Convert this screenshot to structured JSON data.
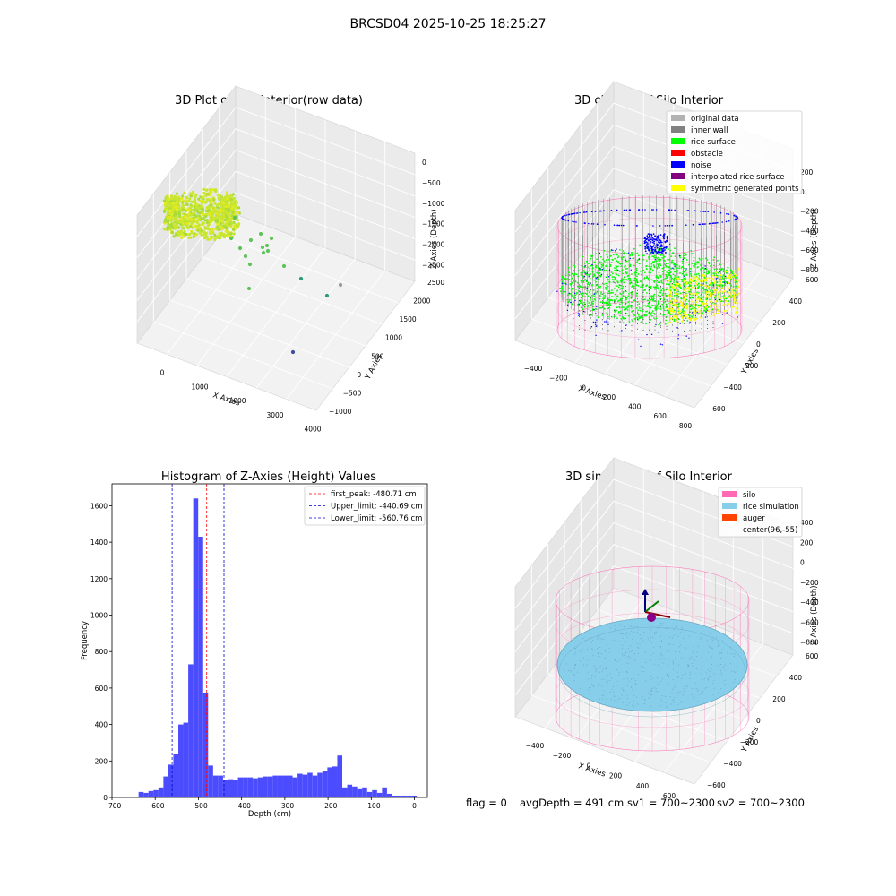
{
  "figure": {
    "suptitle": "BRCSD04 2025-10-25 18:25:27",
    "status_line": {
      "flag": "flag = 0",
      "avg_depth": "avgDepth = 491 cm",
      "sv1": "sv1 = 700~2300",
      "sv2": "sv2 = 700~2300"
    }
  },
  "chart_data": [
    {
      "type": "scatter",
      "title": "3D Plot of Silo Interior(row data)",
      "xlabel": "X Axies",
      "ylabel": "Y Axies",
      "zlabel": "Z Axies (Depth)",
      "xticks": [
        "0",
        "1000",
        "2000",
        "3000",
        "4000"
      ],
      "yticks": [
        "−1000",
        "−500",
        "0",
        "500",
        "1000",
        "1500",
        "2000",
        "2500"
      ],
      "zticks": [
        "0",
        "−500",
        "−1000",
        "−1500",
        "−2000",
        "−2500"
      ],
      "colors": {
        "dense": "#c8e630",
        "mid": "#5fc35a",
        "far": "#2c9d72",
        "outlier": "#3e4c9b",
        "grey": "#9a9a9a"
      }
    },
    {
      "type": "scatter",
      "title": "3D classify of Silo Interior",
      "xlabel": "X Axies",
      "ylabel": "Y Axies",
      "zlabel": "Z Axies (Depth)",
      "xticks": [
        "−400",
        "−200",
        "0",
        "200",
        "400",
        "600",
        "800"
      ],
      "yticks": [
        "−600",
        "−400",
        "−200",
        "0",
        "200",
        "400",
        "600"
      ],
      "zticks": [
        "200",
        "0",
        "−200",
        "−400",
        "−600",
        "−800"
      ],
      "legend": [
        {
          "label": "original data",
          "color": "#b2b2b2"
        },
        {
          "label": "inner wall",
          "color": "#808080"
        },
        {
          "label": "rice surface",
          "color": "#00ff00"
        },
        {
          "label": "obstacle",
          "color": "#ff0000"
        },
        {
          "label": "noise",
          "color": "#0000ff"
        },
        {
          "label": "interpolated rice surface",
          "color": "#800080"
        },
        {
          "label": "symmetric generated points",
          "color": "#ffff00"
        }
      ],
      "legend_position": "top-right"
    },
    {
      "type": "bar",
      "title": "Histogram of Z-Axies (Height) Values",
      "xlabel": "Depth (cm)",
      "ylabel": "Frequency",
      "xlim": [
        -700,
        30
      ],
      "ylim": [
        0,
        1720
      ],
      "xticks": [
        -700,
        -600,
        -500,
        -400,
        -300,
        -200,
        -100,
        0
      ],
      "yticks": [
        0,
        200,
        400,
        600,
        800,
        1000,
        1200,
        1400,
        1600
      ],
      "bin_width": 11.5,
      "bins_start": [
        -650,
        -638.5,
        -627,
        -615.5,
        -604,
        -592.5,
        -581,
        -569.5,
        -558,
        -546.5,
        -535,
        -523.5,
        -512,
        -500.5,
        -489,
        -477.5,
        -466,
        -454.5,
        -443,
        -431.5,
        -420,
        -408.5,
        -397,
        -385.5,
        -374,
        -362.5,
        -351,
        -339.5,
        -328,
        -316.5,
        -305,
        -293.5,
        -282,
        -270.5,
        -259,
        -247.5,
        -236,
        -224.5,
        -213,
        -201.5,
        -190,
        -178.5,
        -167,
        -155.5,
        -144,
        -132.5,
        -121,
        -109.5,
        -98,
        -86.5,
        -75,
        -63.5,
        -52,
        -40.5,
        -29,
        -17.5,
        -6
      ],
      "values": [
        5,
        30,
        25,
        35,
        40,
        55,
        115,
        180,
        240,
        400,
        410,
        730,
        1640,
        1430,
        575,
        175,
        120,
        120,
        95,
        100,
        95,
        110,
        110,
        110,
        105,
        110,
        115,
        115,
        120,
        120,
        120,
        120,
        110,
        130,
        125,
        135,
        120,
        135,
        145,
        165,
        170,
        230,
        55,
        70,
        60,
        45,
        55,
        30,
        40,
        25,
        55,
        20,
        10,
        10,
        10,
        10,
        10
      ],
      "bar_color": "#4c4cff",
      "vlines": [
        {
          "label": "first_peak: -480.71 cm",
          "x": -480.71,
          "color": "#ff0000"
        },
        {
          "label": "Upper_limit: -440.69 cm",
          "x": -440.69,
          "color": "#0000cc"
        },
        {
          "label": "Lower_limit: -560.76 cm",
          "x": -560.76,
          "color": "#0000cc"
        }
      ],
      "legend_position": "top-right"
    },
    {
      "type": "scatter",
      "title": "3D simulation of Silo Interior",
      "xlabel": "X Axies",
      "ylabel": "Y Axies",
      "zlabel": "Z Axies (Depth)",
      "xticks": [
        "−400",
        "−200",
        "0",
        "200",
        "400",
        "600"
      ],
      "yticks": [
        "−600",
        "−400",
        "−200",
        "0",
        "200",
        "400",
        "600"
      ],
      "zticks": [
        "400",
        "200",
        "0",
        "−200",
        "−400",
        "−600",
        "−800"
      ],
      "legend": [
        {
          "label": "silo",
          "color": "#ff69b4"
        },
        {
          "label": "rice simulation",
          "color": "#87ceeb"
        },
        {
          "label": "auger",
          "color": "#ff4500"
        },
        {
          "label": "center(96,-55)",
          "color": ""
        }
      ],
      "legend_position": "top-right"
    }
  ]
}
